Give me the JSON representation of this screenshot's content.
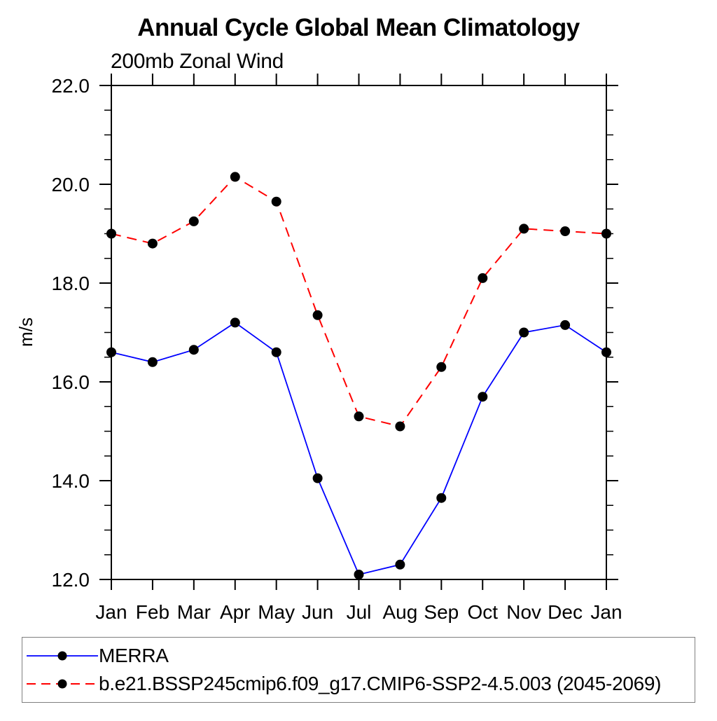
{
  "chart_data": {
    "type": "line",
    "title": "Annual Cycle Global Mean Climatology",
    "subtitle": "200mb Zonal Wind",
    "ylabel": "m/s",
    "categories": [
      "Jan",
      "Feb",
      "Mar",
      "Apr",
      "May",
      "Jun",
      "Jul",
      "Aug",
      "Sep",
      "Oct",
      "Nov",
      "Dec",
      "Jan"
    ],
    "ylim": [
      12.0,
      22.0
    ],
    "ytick_major": [
      12.0,
      14.0,
      16.0,
      18.0,
      20.0,
      22.0
    ],
    "ytick_minor_step": 0.5,
    "ytick_label_format": "one-decimal",
    "grid": false,
    "axis_color": "#000000",
    "marker_color": "#000000",
    "legend_position": "bottom-box",
    "series": [
      {
        "name": "MERRA",
        "color": "#0000ff",
        "line_style": "solid",
        "marker": "filled-circle",
        "values": [
          16.6,
          16.4,
          16.65,
          17.2,
          16.6,
          14.05,
          12.1,
          12.3,
          13.65,
          15.7,
          17.0,
          17.15,
          16.6
        ]
      },
      {
        "name": "b.e21.BSSP245cmip6.f09_g17.CMIP6-SSP2-4.5.003 (2045-2069)",
        "color": "#ff0000",
        "line_style": "dashed",
        "marker": "filled-circle",
        "values": [
          19.0,
          18.8,
          19.25,
          20.15,
          19.65,
          17.35,
          15.3,
          15.1,
          16.3,
          18.1,
          19.1,
          19.05,
          19.0
        ]
      }
    ]
  }
}
